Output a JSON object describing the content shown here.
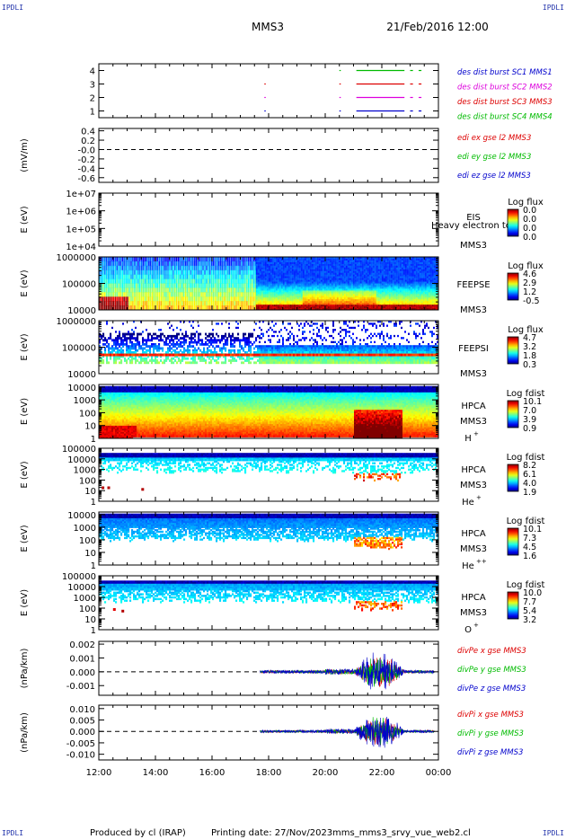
{
  "corner_label": "IPDLI",
  "header": {
    "spacecraft": "MMS3",
    "datetime": "21/Feb/2016 12:00"
  },
  "footer": {
    "produced": "Produced by cl (IRAP)",
    "printing": "Printing date: 27/Nov/2023",
    "file": "mms_mms3_srvy_vue_web2.cl"
  },
  "time_axis": {
    "start_hour": 12,
    "end_hour": 24,
    "tick_labels": [
      "12:00",
      "14:00",
      "16:00",
      "18:00",
      "20:00",
      "22:00",
      "00:00"
    ]
  },
  "colors": {
    "red": "#dd0000",
    "green": "#00bb00",
    "blue": "#0000cc",
    "magenta": "#dd00dd"
  },
  "chart_data": [
    {
      "id": "panel1",
      "type": "line",
      "yticks": [
        "4",
        "3",
        "2",
        "1"
      ],
      "ylim": [
        0.5,
        4.5
      ],
      "legend": [
        {
          "text": "des dist burst SC1 MMS1",
          "color": "#0000cc"
        },
        {
          "text": "des dist burst SC2 MMS2",
          "color": "#dd00dd"
        },
        {
          "text": "des dist burst SC3 MMS3",
          "color": "#dd0000"
        },
        {
          "text": "des dist burst SC4 MMS4",
          "color": "#00bb00"
        }
      ],
      "series": [
        {
          "color": "#00bb00",
          "y": 4,
          "intervals": [
            [
              20.5,
              20.55
            ],
            [
              21.1,
              22.8
            ],
            [
              23.0,
              23.1
            ],
            [
              23.3,
              23.4
            ]
          ]
        },
        {
          "color": "#dd00dd",
          "y": 2,
          "intervals": [
            [
              17.85,
              17.88
            ],
            [
              20.5,
              20.55
            ],
            [
              21.1,
              22.8
            ],
            [
              23.0,
              23.1
            ],
            [
              23.3,
              23.4
            ]
          ]
        },
        {
          "color": "#dd0000",
          "y": 3,
          "intervals": [
            [
              17.85,
              17.88
            ],
            [
              20.5,
              20.55
            ],
            [
              21.1,
              22.8
            ],
            [
              23.0,
              23.1
            ],
            [
              23.3,
              23.4
            ]
          ]
        },
        {
          "color": "#0000cc",
          "y": 1,
          "intervals": [
            [
              17.85,
              17.88
            ],
            [
              20.5,
              20.55
            ],
            [
              21.1,
              22.8
            ],
            [
              23.0,
              23.1
            ],
            [
              23.3,
              23.4
            ]
          ]
        }
      ]
    },
    {
      "id": "panel2",
      "type": "line",
      "ylabel": "(mV/m)",
      "yticks": [
        "0.4",
        "0.2",
        "-0.0",
        "-0.2",
        "-0.4",
        "-0.6"
      ],
      "ytick_values": [
        0.4,
        0.2,
        0.0,
        -0.2,
        -0.4,
        -0.6
      ],
      "ylim": [
        -0.7,
        0.45
      ],
      "zero_line": 0,
      "legend": [
        {
          "text": "edi ex gse l2 MMS3",
          "color": "#dd0000"
        },
        {
          "text": "edi ey gse l2 MMS3",
          "color": "#00bb00"
        },
        {
          "text": "edi ez gse l2 MMS3",
          "color": "#0000cc"
        }
      ]
    },
    {
      "id": "panel3",
      "type": "heatmap",
      "ylabel": "E (eV)",
      "yticks": [
        "1e+07",
        "1e+06",
        "1e+05",
        "1e+04"
      ],
      "ylog": [
        4,
        7
      ],
      "instrument": [
        "EIS",
        "MMS3"
      ],
      "overlay_text": "Heavy electron tof",
      "cbar_title": "Log flux",
      "cbar_labels": [
        "0.0",
        "0.0",
        "0.0",
        "0.0"
      ],
      "empty": true
    },
    {
      "id": "panel4",
      "type": "heatmap",
      "ylabel": "E (eV)",
      "yticks": [
        "1000000",
        "100000",
        "10000"
      ],
      "ylog": [
        4,
        6
      ],
      "instrument": [
        "FEEPSE",
        "MMS3"
      ],
      "cbar_title": "Log flux",
      "cbar_labels": [
        "4.6",
        "2.9",
        "1.2",
        "-0.5"
      ],
      "mode": "feepse"
    },
    {
      "id": "panel5",
      "type": "heatmap",
      "ylabel": "E (eV)",
      "yticks": [
        "1000000",
        "100000",
        "10000"
      ],
      "ylog": [
        4,
        6
      ],
      "instrument": [
        "FEEPSI",
        "MMS3"
      ],
      "cbar_title": "Log flux",
      "cbar_labels": [
        "4.7",
        "3.2",
        "1.8",
        "0.3"
      ],
      "mode": "feepsi"
    },
    {
      "id": "panel6",
      "type": "heatmap",
      "ylabel": "E (eV)",
      "yticks": [
        "10000",
        "1000",
        "100",
        "10",
        "1"
      ],
      "ylog": [
        0,
        4.2
      ],
      "instrument": [
        "HPCA",
        "MMS3"
      ],
      "species": "H",
      "species_sup": "+",
      "cbar_title": "Log fdist",
      "cbar_labels": [
        "10.1",
        "7.0",
        "3.9",
        "0.9"
      ],
      "mode": "hplus"
    },
    {
      "id": "panel7",
      "type": "heatmap",
      "ylabel": "E (eV)",
      "yticks": [
        "100000",
        "10000",
        "1000",
        "100",
        "10",
        "1"
      ],
      "ylog": [
        0,
        5
      ],
      "instrument": [
        "HPCA",
        "MMS3"
      ],
      "species": "He",
      "species_sup": "+",
      "cbar_title": "Log fdist",
      "cbar_labels": [
        "8.2",
        "6.1",
        "4.0",
        "1.9"
      ],
      "mode": "heplus"
    },
    {
      "id": "panel8",
      "type": "heatmap",
      "ylabel": "E (eV)",
      "yticks": [
        "10000",
        "1000",
        "100",
        "10",
        "1"
      ],
      "ylog": [
        0,
        4.2
      ],
      "instrument": [
        "HPCA",
        "MMS3"
      ],
      "species": "He",
      "species_sup": "++",
      "cbar_title": "Log fdist",
      "cbar_labels": [
        "10.1",
        "7.3",
        "4.5",
        "1.6"
      ],
      "mode": "heplusplus"
    },
    {
      "id": "panel9",
      "type": "heatmap",
      "ylabel": "E (eV)",
      "yticks": [
        "100000",
        "10000",
        "1000",
        "100",
        "10",
        "1"
      ],
      "ylog": [
        0,
        5
      ],
      "instrument": [
        "HPCA",
        "MMS3"
      ],
      "species": "O",
      "species_sup": "+",
      "cbar_title": "Log fdist",
      "cbar_labels": [
        "10.0",
        "7.7",
        "5.4",
        "3.2"
      ],
      "mode": "oplus"
    },
    {
      "id": "panel10",
      "type": "line",
      "ylabel": "(nPa/km)",
      "yticks": [
        "0.002",
        "0.001",
        "0.000",
        "-0.001"
      ],
      "ytick_values": [
        0.002,
        0.001,
        0.0,
        -0.001
      ],
      "ylim": [
        -0.0017,
        0.0022
      ],
      "zero_line": 0,
      "legend": [
        {
          "text": "divPe x gse MMS3",
          "color": "#dd0000"
        },
        {
          "text": "divPe y gse MMS3",
          "color": "#00bb00"
        },
        {
          "text": "divPe z gse MMS3",
          "color": "#0000cc"
        }
      ],
      "noise": {
        "start": 17.7,
        "end": 23.85,
        "base": 0.00012,
        "burst_start": 21.0,
        "burst_end": 22.8,
        "burst_amp": 0.0015
      }
    },
    {
      "id": "panel11",
      "type": "line",
      "ylabel": "(nPa/km)",
      "yticks": [
        "0.010",
        "0.005",
        "0.000",
        "-0.005",
        "-0.010"
      ],
      "ytick_values": [
        0.01,
        0.005,
        0.0,
        -0.005,
        -0.01
      ],
      "ylim": [
        -0.0125,
        0.0115
      ],
      "zero_line": 0,
      "legend": [
        {
          "text": "divPi x gse MMS3",
          "color": "#dd0000"
        },
        {
          "text": "divPi y gse MMS3",
          "color": "#00bb00"
        },
        {
          "text": "divPi z gse MMS3",
          "color": "#0000cc"
        }
      ],
      "noise": {
        "start": 17.7,
        "end": 23.85,
        "base": 0.0006,
        "burst_start": 21.0,
        "burst_end": 22.8,
        "burst_amp": 0.008
      }
    }
  ]
}
